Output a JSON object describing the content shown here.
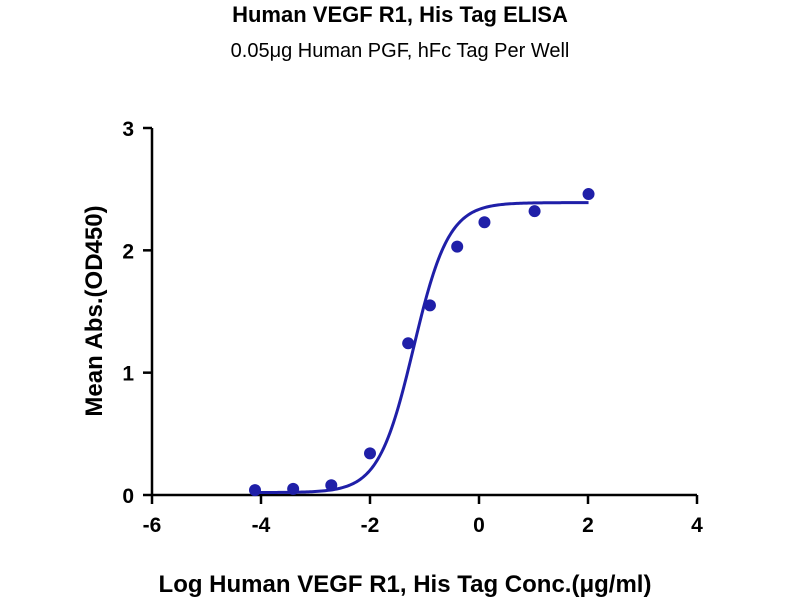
{
  "chart_data": {
    "type": "scatter",
    "title": "Human VEGF R1, His Tag ELISA",
    "subtitle": "0.05μg Human PGF, hFc Tag Per Well",
    "xlabel": "Log Human VEGF R1, His Tag Conc.(μg/ml)",
    "ylabel": "Mean Abs.(OD450)",
    "xlim": [
      -6,
      4
    ],
    "ylim": [
      0,
      3
    ],
    "xticks": [
      "-6",
      "-4",
      "-2",
      "0",
      "2",
      "4"
    ],
    "yticks": [
      "0",
      "1",
      "2",
      "3"
    ],
    "grid": false,
    "series": [
      {
        "color": "#1f1fa8",
        "x": [
          -4.11,
          -3.41,
          -2.71,
          -2.0,
          -1.3,
          -0.9,
          -0.4,
          0.1,
          1.02,
          2.01
        ],
        "y": [
          0.04,
          0.05,
          0.08,
          0.34,
          1.24,
          1.55,
          2.03,
          2.23,
          2.32,
          2.46
        ]
      }
    ],
    "fit_curve": {
      "type": "4PL",
      "color": "#1f1fa8",
      "bottom": 0.02,
      "top": 2.39,
      "logEC50": -1.2,
      "hill": 1.35,
      "x_range": [
        -4.11,
        2.01
      ]
    }
  }
}
